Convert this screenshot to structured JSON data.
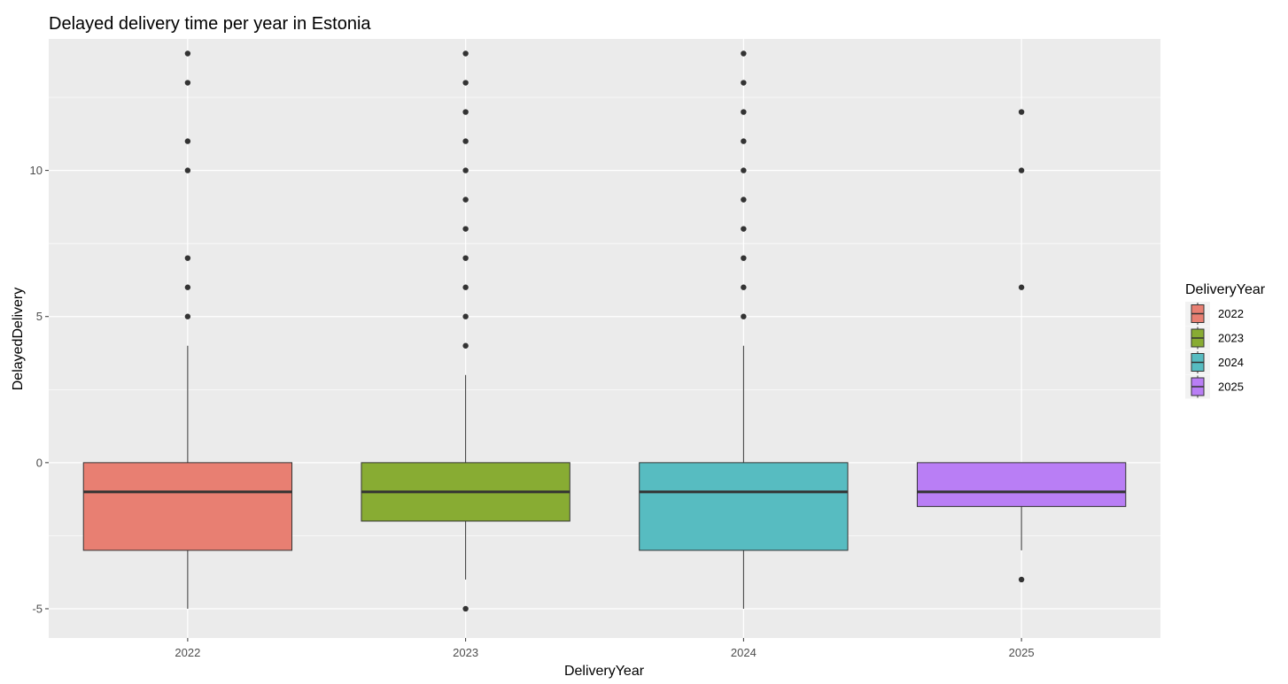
{
  "chart_data": {
    "type": "boxplot",
    "title": "Delayed delivery time per year in Estonia",
    "xlabel": "DeliveryYear",
    "ylabel": "DelayedDelivery",
    "ylim": [
      -6,
      14.5
    ],
    "yticks": [
      -5,
      0,
      5,
      10
    ],
    "grid": true,
    "legend": {
      "title": "DeliveryYear",
      "placement": "right"
    },
    "colors": {
      "panel": "#ebebeb",
      "grid": "#ffffff",
      "outline": "#333333",
      "point": "#333333"
    },
    "categories": [
      "2022",
      "2023",
      "2024",
      "2025"
    ],
    "series": [
      {
        "name": "2022",
        "color": "#e87f72",
        "whisker_low": -5,
        "q1": -3,
        "median": -1,
        "q3": 0,
        "whisker_high": 4,
        "outliers": [
          5,
          6,
          7,
          10,
          11,
          13,
          14
        ]
      },
      {
        "name": "2023",
        "color": "#88ac33",
        "whisker_low": -4,
        "q1": -2,
        "median": -1,
        "q3": 0,
        "whisker_high": 3,
        "outliers": [
          -5,
          4,
          5,
          6,
          7,
          8,
          9,
          10,
          11,
          12,
          13,
          14
        ]
      },
      {
        "name": "2024",
        "color": "#57bcc1",
        "whisker_low": -5,
        "q1": -3,
        "median": -1,
        "q3": 0,
        "whisker_high": 4,
        "outliers": [
          5,
          6,
          7,
          8,
          9,
          10,
          11,
          12,
          13,
          14
        ]
      },
      {
        "name": "2025",
        "color": "#b97ef5",
        "whisker_low": -3,
        "q1": -1.5,
        "median": -1,
        "q3": 0,
        "whisker_high": 0,
        "outliers": [
          -4,
          6,
          10,
          12
        ]
      }
    ]
  }
}
